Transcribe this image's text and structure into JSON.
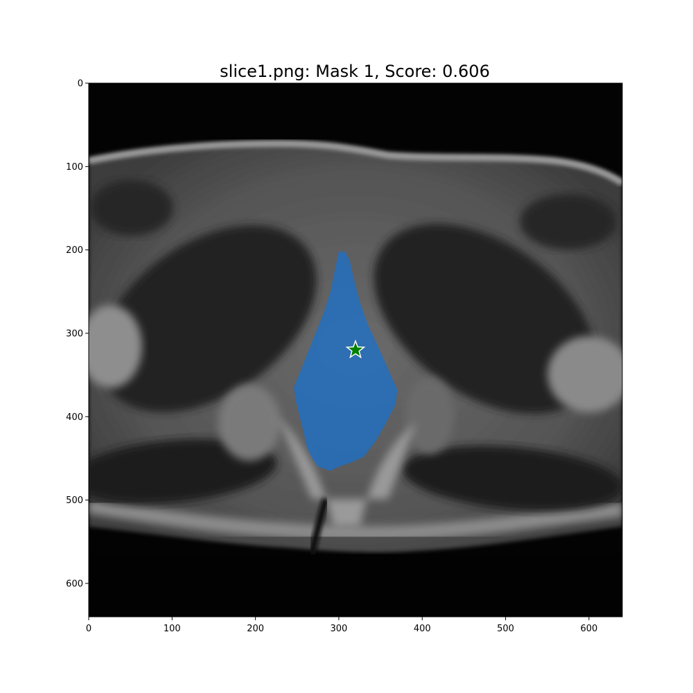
{
  "figure": {
    "title": "slice1.png: Mask 1, Score: 0.606"
  },
  "image_extent": {
    "x": [
      0,
      640
    ],
    "y": [
      0,
      640
    ]
  },
  "axes": {
    "x_ticks": [
      {
        "value": 0,
        "label": "0"
      },
      {
        "value": 100,
        "label": "100"
      },
      {
        "value": 200,
        "label": "200"
      },
      {
        "value": 300,
        "label": "300"
      },
      {
        "value": 400,
        "label": "400"
      },
      {
        "value": 500,
        "label": "500"
      },
      {
        "value": 600,
        "label": "600"
      }
    ],
    "y_ticks": [
      {
        "value": 0,
        "label": "0"
      },
      {
        "value": 100,
        "label": "100"
      },
      {
        "value": 200,
        "label": "200"
      },
      {
        "value": 300,
        "label": "300"
      },
      {
        "value": 400,
        "label": "400"
      },
      {
        "value": 500,
        "label": "500"
      },
      {
        "value": 600,
        "label": "600"
      }
    ]
  },
  "mask": {
    "color": "#1f6fc4",
    "polygon": [
      [
        300,
        202
      ],
      [
        307,
        202
      ],
      [
        313,
        212
      ],
      [
        318,
        235
      ],
      [
        325,
        262
      ],
      [
        335,
        290
      ],
      [
        348,
        318
      ],
      [
        360,
        345
      ],
      [
        370,
        368
      ],
      [
        368,
        385
      ],
      [
        358,
        405
      ],
      [
        345,
        428
      ],
      [
        330,
        448
      ],
      [
        315,
        455
      ],
      [
        300,
        460
      ],
      [
        290,
        465
      ],
      [
        275,
        460
      ],
      [
        268,
        450
      ],
      [
        262,
        438
      ],
      [
        258,
        420
      ],
      [
        253,
        400
      ],
      [
        248,
        380
      ],
      [
        246,
        365
      ],
      [
        252,
        350
      ],
      [
        262,
        325
      ],
      [
        272,
        300
      ],
      [
        282,
        275
      ],
      [
        290,
        250
      ],
      [
        295,
        225
      ]
    ]
  },
  "point_marker": {
    "x": 320,
    "y": 320,
    "color": "#008000",
    "edge_color": "#ffffff",
    "shape": "star-icon"
  }
}
